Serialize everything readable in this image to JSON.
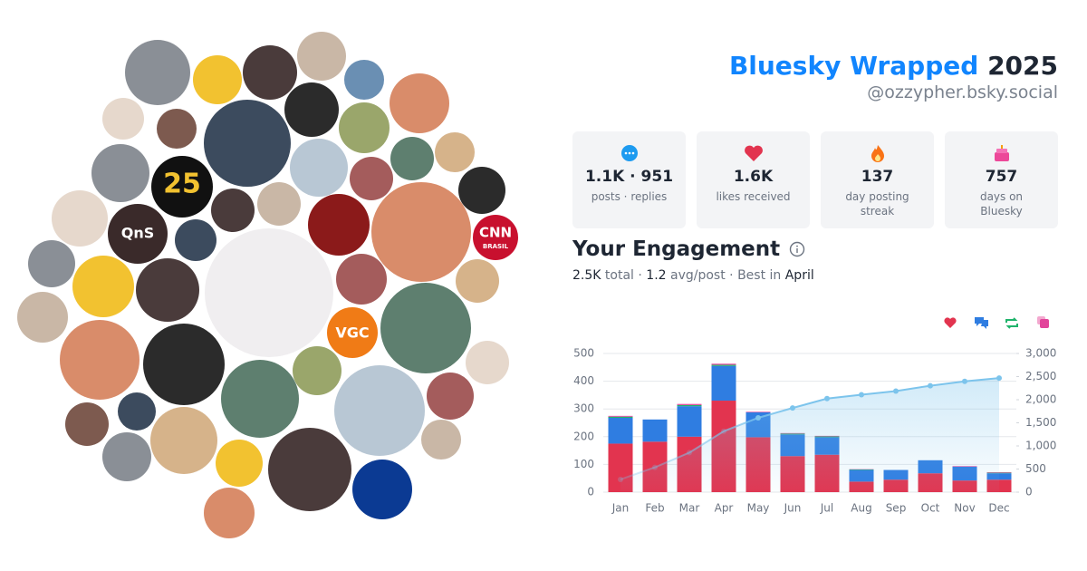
{
  "avatar_labels": {
    "a25": "25",
    "qns": "QnS",
    "vgc": "VGC",
    "cnn": "CNN",
    "cnn_sub": "BRASIL"
  },
  "header": {
    "title": "Bluesky Wrapped",
    "year": "2025",
    "handle": "@ozzypher.bsky.social"
  },
  "stats": [
    {
      "value": "1.1K · 951",
      "label": "posts · replies"
    },
    {
      "value": "1.6K",
      "label": "likes received"
    },
    {
      "value": "137",
      "label": "day posting streak"
    },
    {
      "value": "757",
      "label": "days on Bluesky"
    }
  ],
  "engagement": {
    "title": "Your Engagement",
    "total": "2.5K",
    "total_label": "total",
    "sep": "·",
    "avg": "1.2",
    "avg_label": "avg/post",
    "best_label": "Best in",
    "best": "April"
  },
  "chart_data": {
    "type": "bar",
    "stacked": true,
    "grid": true,
    "categories": [
      "Jan",
      "Feb",
      "Mar",
      "Apr",
      "May",
      "Jun",
      "Jul",
      "Aug",
      "Sep",
      "Oct",
      "Nov",
      "Dec"
    ],
    "series": [
      {
        "color": "#e2344f",
        "values": [
          175,
          182,
          200,
          330,
          198,
          130,
          135,
          38,
          45,
          68,
          42,
          45
        ]
      },
      {
        "color": "#2f7de1",
        "values": [
          93,
          80,
          110,
          125,
          90,
          78,
          63,
          42,
          35,
          47,
          50,
          23
        ]
      },
      {
        "color": "#1fb36b",
        "values": [
          4,
          0,
          4,
          4,
          0,
          3,
          3,
          2,
          0,
          0,
          0,
          2
        ]
      },
      {
        "color": "#e2459b",
        "values": [
          3,
          0,
          4,
          4,
          2,
          2,
          2,
          1,
          0,
          0,
          2,
          2
        ]
      },
      {
        "type": "line",
        "axis": "y2",
        "color": "#7cc4ec",
        "values": [
          275,
          537,
          855,
          1318,
          1608,
          1821,
          2024,
          2107,
          2187,
          2302,
          2396,
          2468
        ]
      }
    ],
    "ylim": [
      0,
      500
    ],
    "yticks": [
      0,
      100,
      200,
      300,
      400,
      500
    ],
    "y2lim": [
      0,
      3000
    ],
    "y2ticks": [
      0,
      500,
      {
        "value": 1000,
        "label": "1,000"
      },
      {
        "value": 1500,
        "label": "1,500"
      },
      {
        "value": 2000,
        "label": "2,000"
      },
      {
        "value": 2500,
        "label": "2,500"
      },
      {
        "value": 3000,
        "label": "3,000"
      }
    ]
  }
}
